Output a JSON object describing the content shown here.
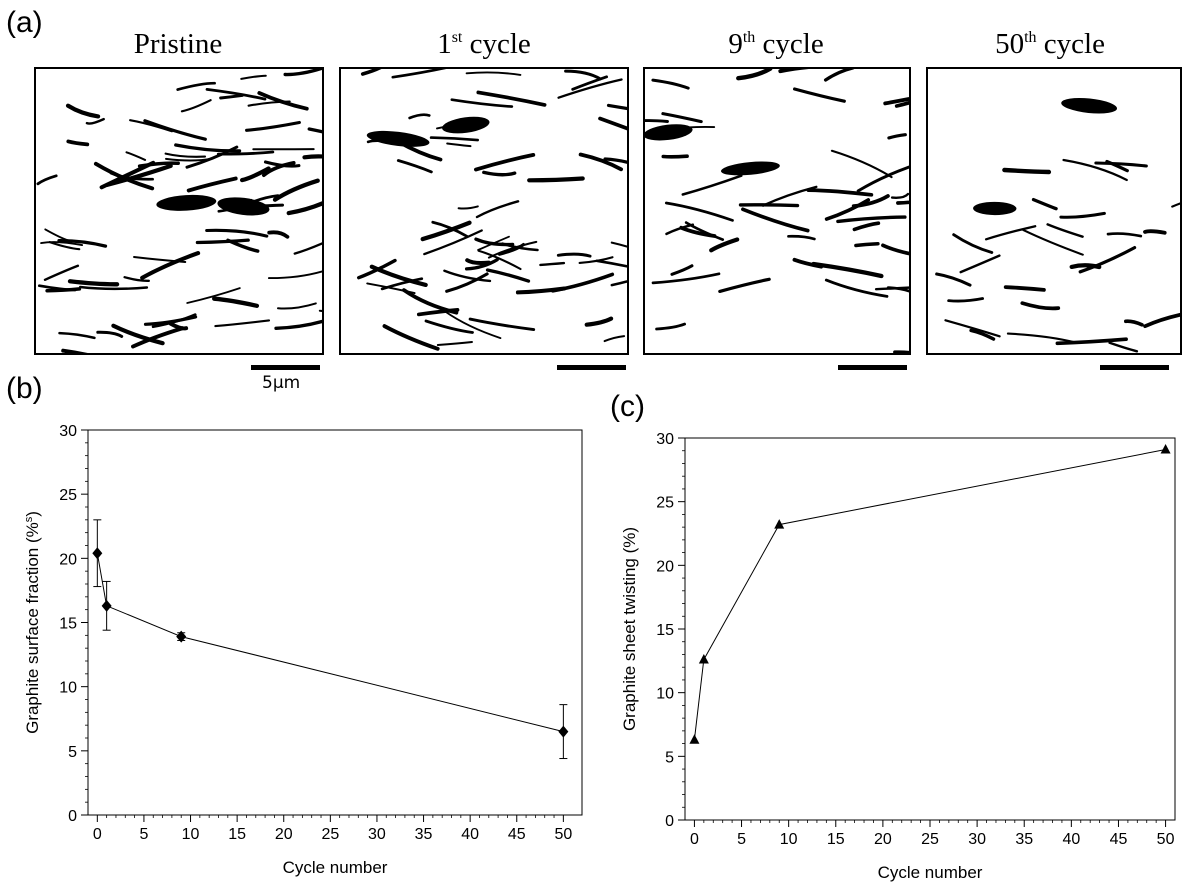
{
  "panel_labels": {
    "a": "(a)",
    "b": "(b)",
    "c": "(c)"
  },
  "micrographs": [
    {
      "title_base": "Pristine",
      "title_sup": "",
      "title_rest": "",
      "density": 1.0,
      "seed": 11
    },
    {
      "title_base": "1",
      "title_sup": "st",
      "title_rest": " cycle",
      "density": 0.85,
      "seed": 23
    },
    {
      "title_base": "9",
      "title_sup": "th",
      "title_rest": " cycle",
      "density": 0.62,
      "seed": 37
    },
    {
      "title_base": "50",
      "title_sup": "th",
      "title_rest": " cycle",
      "density": 0.38,
      "seed": 53
    }
  ],
  "scale_bar_label": "5μm",
  "chart_data": [
    {
      "type": "line",
      "panel": "(b)",
      "x": [
        0,
        1,
        9,
        50
      ],
      "series": [
        {
          "values": [
            20.4,
            16.3,
            13.9,
            6.5
          ],
          "error": [
            2.6,
            1.9,
            0.3,
            2.1
          ],
          "marker": "diamond"
        }
      ],
      "xlabel": "Cycle number",
      "ylabel": "Graphite surface fraction (%",
      "ylabel_sup": "s",
      "ylabel_end": ")",
      "xlim": [
        -1,
        52
      ],
      "ylim": [
        0,
        30
      ],
      "xticks": [
        "0",
        "5",
        "10",
        "15",
        "20",
        "25",
        "30",
        "35",
        "40",
        "45",
        "50"
      ],
      "yticks": [
        "0",
        "5",
        "10",
        "15",
        "20",
        "25",
        "30"
      ]
    },
    {
      "type": "line",
      "panel": "(c)",
      "x": [
        0,
        1,
        9,
        50
      ],
      "series": [
        {
          "values": [
            6.3,
            12.6,
            23.2,
            29.1
          ],
          "marker": "triangle"
        }
      ],
      "xlabel": "Cycle number",
      "ylabel": "Graphite sheet twisting (%)",
      "xlim": [
        -1,
        51
      ],
      "ylim": [
        0,
        30
      ],
      "xticks": [
        "0",
        "5",
        "10",
        "15",
        "20",
        "25",
        "30",
        "35",
        "40",
        "45",
        "50"
      ],
      "yticks": [
        "0",
        "5",
        "10",
        "15",
        "20",
        "25",
        "30"
      ]
    }
  ]
}
